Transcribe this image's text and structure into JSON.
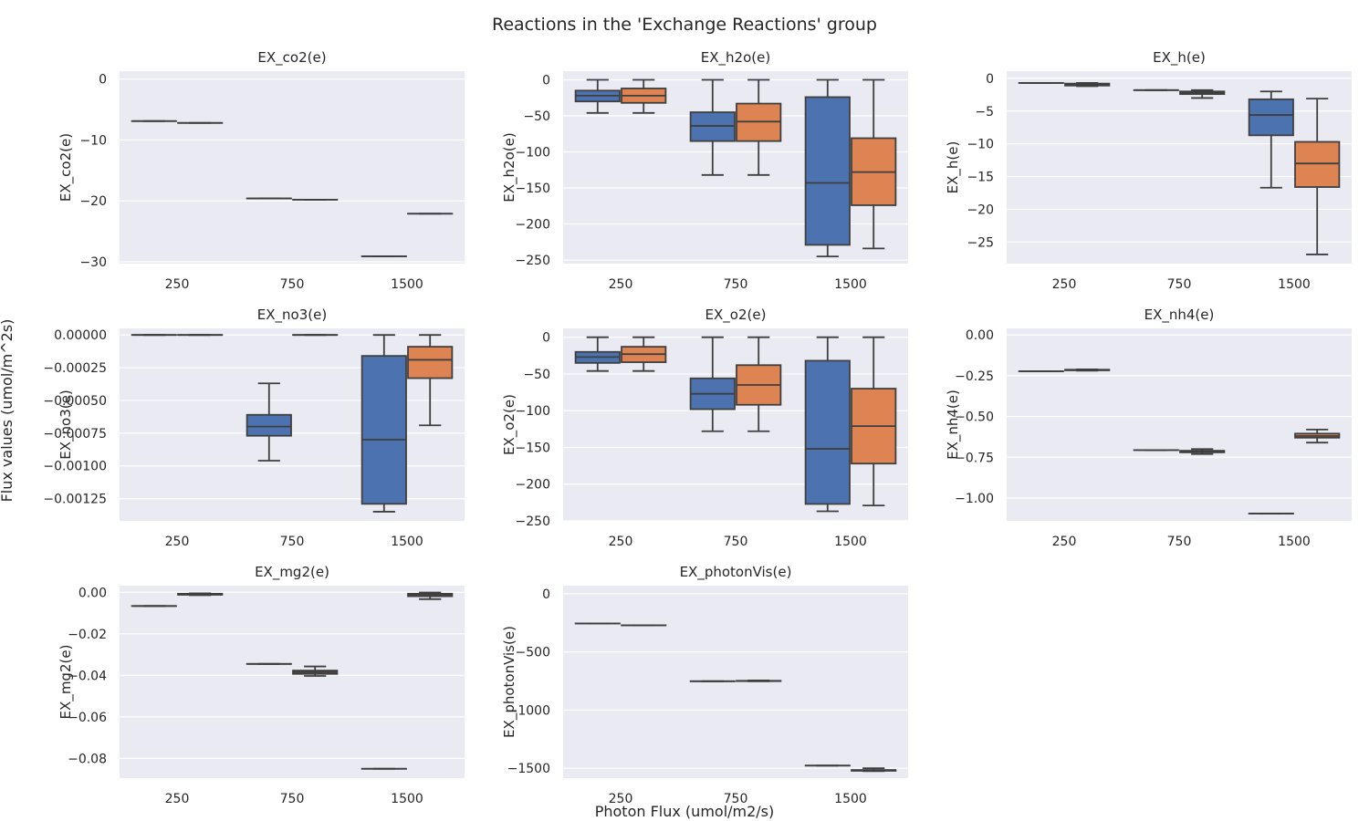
{
  "figure": {
    "title": "Reactions in the 'Exchange Reactions' group",
    "xlabel": "Photon Flux (umol/m2/s)",
    "ylabel": "Flux values (umol/m^2s)"
  },
  "colors": {
    "background": "#eaeaf2",
    "grid": "#ffffff",
    "series_1": "#4c72b0",
    "series_2": "#dd8452",
    "line": "#3f3f3f"
  },
  "chart_data": [
    {
      "type": "box",
      "title": "EX_co2(e)",
      "ylabel": "EX_co2(e)",
      "categories": [
        "250",
        "750",
        "1500"
      ],
      "ylim": [
        -30.3,
        1.3
      ],
      "yticks": [
        0,
        -10,
        -20,
        -30
      ],
      "yticklabels": [
        "0",
        "−10",
        "−20",
        "−30"
      ],
      "series": [
        {
          "boxes": [
            [
              -6.9,
              -6.9,
              -6.9,
              -6.9,
              -6.9
            ],
            [
              -19.6,
              -19.6,
              -19.6,
              -19.6,
              -19.6
            ],
            [
              -29.1,
              -29.1,
              -29.1,
              -29.1,
              -29.1
            ]
          ]
        },
        {
          "boxes": [
            [
              -7.2,
              -7.2,
              -7.2,
              -7.2,
              -7.2
            ],
            [
              -19.8,
              -19.8,
              -19.8,
              -19.8,
              -19.8
            ],
            [
              -22.1,
              -22.1,
              -22.1,
              -22.1,
              -22.1
            ]
          ]
        }
      ]
    },
    {
      "type": "box",
      "title": "EX_h2o(e)",
      "ylabel": "EX_h2o(e)",
      "categories": [
        "250",
        "750",
        "1500"
      ],
      "ylim": [
        -255,
        12
      ],
      "yticks": [
        0,
        -50,
        -100,
        -150,
        -200,
        -250
      ],
      "yticklabels": [
        "0",
        "−50",
        "−100",
        "−150",
        "−200",
        "−250"
      ],
      "series": [
        {
          "boxes": [
            [
              -46,
              -30,
              -22,
              -15,
              0
            ],
            [
              -132,
              -85,
              -64,
              -45,
              0
            ],
            [
              -245,
              -229,
              -143,
              -24,
              0
            ]
          ]
        },
        {
          "boxes": [
            [
              -46,
              -32,
              -22,
              -12,
              0
            ],
            [
              -132,
              -85,
              -58,
              -33,
              0
            ],
            [
              -234,
              -174,
              -128,
              -81,
              0
            ]
          ]
        }
      ]
    },
    {
      "type": "box",
      "title": "EX_h(e)",
      "ylabel": "EX_h(e)",
      "categories": [
        "250",
        "750",
        "1500"
      ],
      "ylim": [
        -28.3,
        1.1
      ],
      "yticks": [
        0,
        -5,
        -10,
        -15,
        -20,
        -25
      ],
      "yticklabels": [
        "0",
        "−5",
        "−10",
        "−15",
        "−20",
        "−25"
      ],
      "series": [
        {
          "boxes": [
            [
              -0.7,
              -0.7,
              -0.7,
              -0.7,
              -0.7
            ],
            [
              -1.8,
              -1.8,
              -1.8,
              -1.8,
              -1.8
            ],
            [
              -16.7,
              -8.7,
              -5.6,
              -3.2,
              -2.0
            ]
          ]
        },
        {
          "boxes": [
            [
              -1.2,
              -1.1,
              -1.0,
              -0.8,
              -0.7
            ],
            [
              -3.0,
              -2.4,
              -2.2,
              -2.0,
              -1.8
            ],
            [
              -26.9,
              -16.6,
              -13.0,
              -9.7,
              -3.1
            ]
          ]
        }
      ]
    },
    {
      "type": "box",
      "title": "EX_no3(e)",
      "ylabel": "EX_no3(e)",
      "categories": [
        "250",
        "750",
        "1500"
      ],
      "ylim": [
        -0.00142,
        5e-05
      ],
      "yticks": [
        0,
        -0.00025,
        -0.0005,
        -0.00075,
        -0.001,
        -0.00125
      ],
      "yticklabels": [
        "0.00000",
        "−0.00025",
        "−0.00050",
        "−0.00075",
        "−0.00100",
        "−0.00125"
      ],
      "series": [
        {
          "boxes": [
            [
              0,
              0,
              0,
              0,
              0
            ],
            [
              -0.00096,
              -0.00077,
              -0.0007,
              -0.00061,
              -0.00037
            ],
            [
              -0.00135,
              -0.00129,
              -0.0008,
              -0.00016,
              0
            ]
          ]
        },
        {
          "boxes": [
            [
              0,
              0,
              0,
              0,
              0
            ],
            [
              0,
              0,
              0,
              0,
              0
            ],
            [
              -0.00069,
              -0.00033,
              -0.00019,
              -9e-05,
              0
            ]
          ]
        }
      ]
    },
    {
      "type": "box",
      "title": "EX_o2(e)",
      "ylabel": "EX_o2(e)",
      "categories": [
        "250",
        "750",
        "1500"
      ],
      "ylim": [
        -250,
        12
      ],
      "yticks": [
        0,
        -50,
        -100,
        -150,
        -200,
        -250
      ],
      "yticklabels": [
        "0",
        "−50",
        "−100",
        "−150",
        "−200",
        "−250"
      ],
      "series": [
        {
          "boxes": [
            [
              -46,
              -35,
              -27,
              -20,
              0
            ],
            [
              -128,
              -98,
              -77,
              -56,
              0
            ],
            [
              -237,
              -227,
              -152,
              -32,
              0
            ]
          ]
        },
        {
          "boxes": [
            [
              -46,
              -34,
              -23,
              -13,
              0
            ],
            [
              -128,
              -92,
              -65,
              -38,
              0
            ],
            [
              -229,
              -172,
              -121,
              -70,
              0
            ]
          ]
        }
      ]
    },
    {
      "type": "box",
      "title": "EX_nh4(e)",
      "ylabel": "EX_nh4(e)",
      "categories": [
        "250",
        "750",
        "1500"
      ],
      "ylim": [
        -1.14,
        0.04
      ],
      "yticks": [
        0,
        -0.25,
        -0.5,
        -0.75,
        -1.0
      ],
      "yticklabels": [
        "0.00",
        "−0.25",
        "−0.50",
        "−0.75",
        "−1.00"
      ],
      "series": [
        {
          "boxes": [
            [
              -0.223,
              -0.223,
              -0.223,
              -0.223,
              -0.223
            ],
            [
              -0.706,
              -0.706,
              -0.706,
              -0.706,
              -0.706
            ],
            [
              -1.095,
              -1.095,
              -1.095,
              -1.095,
              -1.095
            ]
          ]
        },
        {
          "boxes": [
            [
              -0.219,
              -0.217,
              -0.215,
              -0.213,
              -0.211
            ],
            [
              -0.73,
              -0.72,
              -0.715,
              -0.71,
              -0.7
            ],
            [
              -0.66,
              -0.63,
              -0.62,
              -0.605,
              -0.58
            ]
          ]
        }
      ]
    },
    {
      "type": "box",
      "title": "EX_mg2(e)",
      "ylabel": "EX_mg2(e)",
      "categories": [
        "250",
        "750",
        "1500"
      ],
      "ylim": [
        -0.0895,
        0.0032
      ],
      "yticks": [
        0,
        -0.02,
        -0.04,
        -0.06,
        -0.08
      ],
      "yticklabels": [
        "0.00",
        "−0.02",
        "−0.04",
        "−0.06",
        "−0.08"
      ],
      "series": [
        {
          "boxes": [
            [
              -0.0066,
              -0.0066,
              -0.0066,
              -0.0066,
              -0.0066
            ],
            [
              -0.0345,
              -0.0345,
              -0.0345,
              -0.0345,
              -0.0345
            ],
            [
              -0.085,
              -0.085,
              -0.085,
              -0.085,
              -0.085
            ]
          ]
        },
        {
          "boxes": [
            [
              -0.0014,
              -0.0012,
              -0.001,
              -0.0007,
              -0.0005
            ],
            [
              -0.0403,
              -0.0393,
              -0.0385,
              -0.0377,
              -0.0357
            ],
            [
              -0.0033,
              -0.0019,
              -0.0012,
              -0.0007,
              -0.0001
            ]
          ]
        }
      ]
    },
    {
      "type": "box",
      "title": "EX_photonVis(e)",
      "ylabel": "EX_photonVis(e)",
      "categories": [
        "250",
        "750",
        "1500"
      ],
      "ylim": [
        -1585,
        70
      ],
      "yticks": [
        0,
        -500,
        -1000,
        -1500
      ],
      "yticklabels": [
        "0",
        "−500",
        "−1000",
        "−1500"
      ],
      "series": [
        {
          "boxes": [
            [
              -255,
              -255,
              -255,
              -255,
              -255
            ],
            [
              -752,
              -752,
              -752,
              -752,
              -752
            ],
            [
              -1477,
              -1477,
              -1477,
              -1477,
              -1477
            ]
          ]
        },
        {
          "boxes": [
            [
              -271,
              -271,
              -271,
              -271,
              -271
            ],
            [
              -752,
              -751,
              -749,
              -748,
              -745
            ],
            [
              -1525,
              -1522,
              -1518,
              -1515,
              -1500
            ]
          ]
        }
      ]
    }
  ]
}
